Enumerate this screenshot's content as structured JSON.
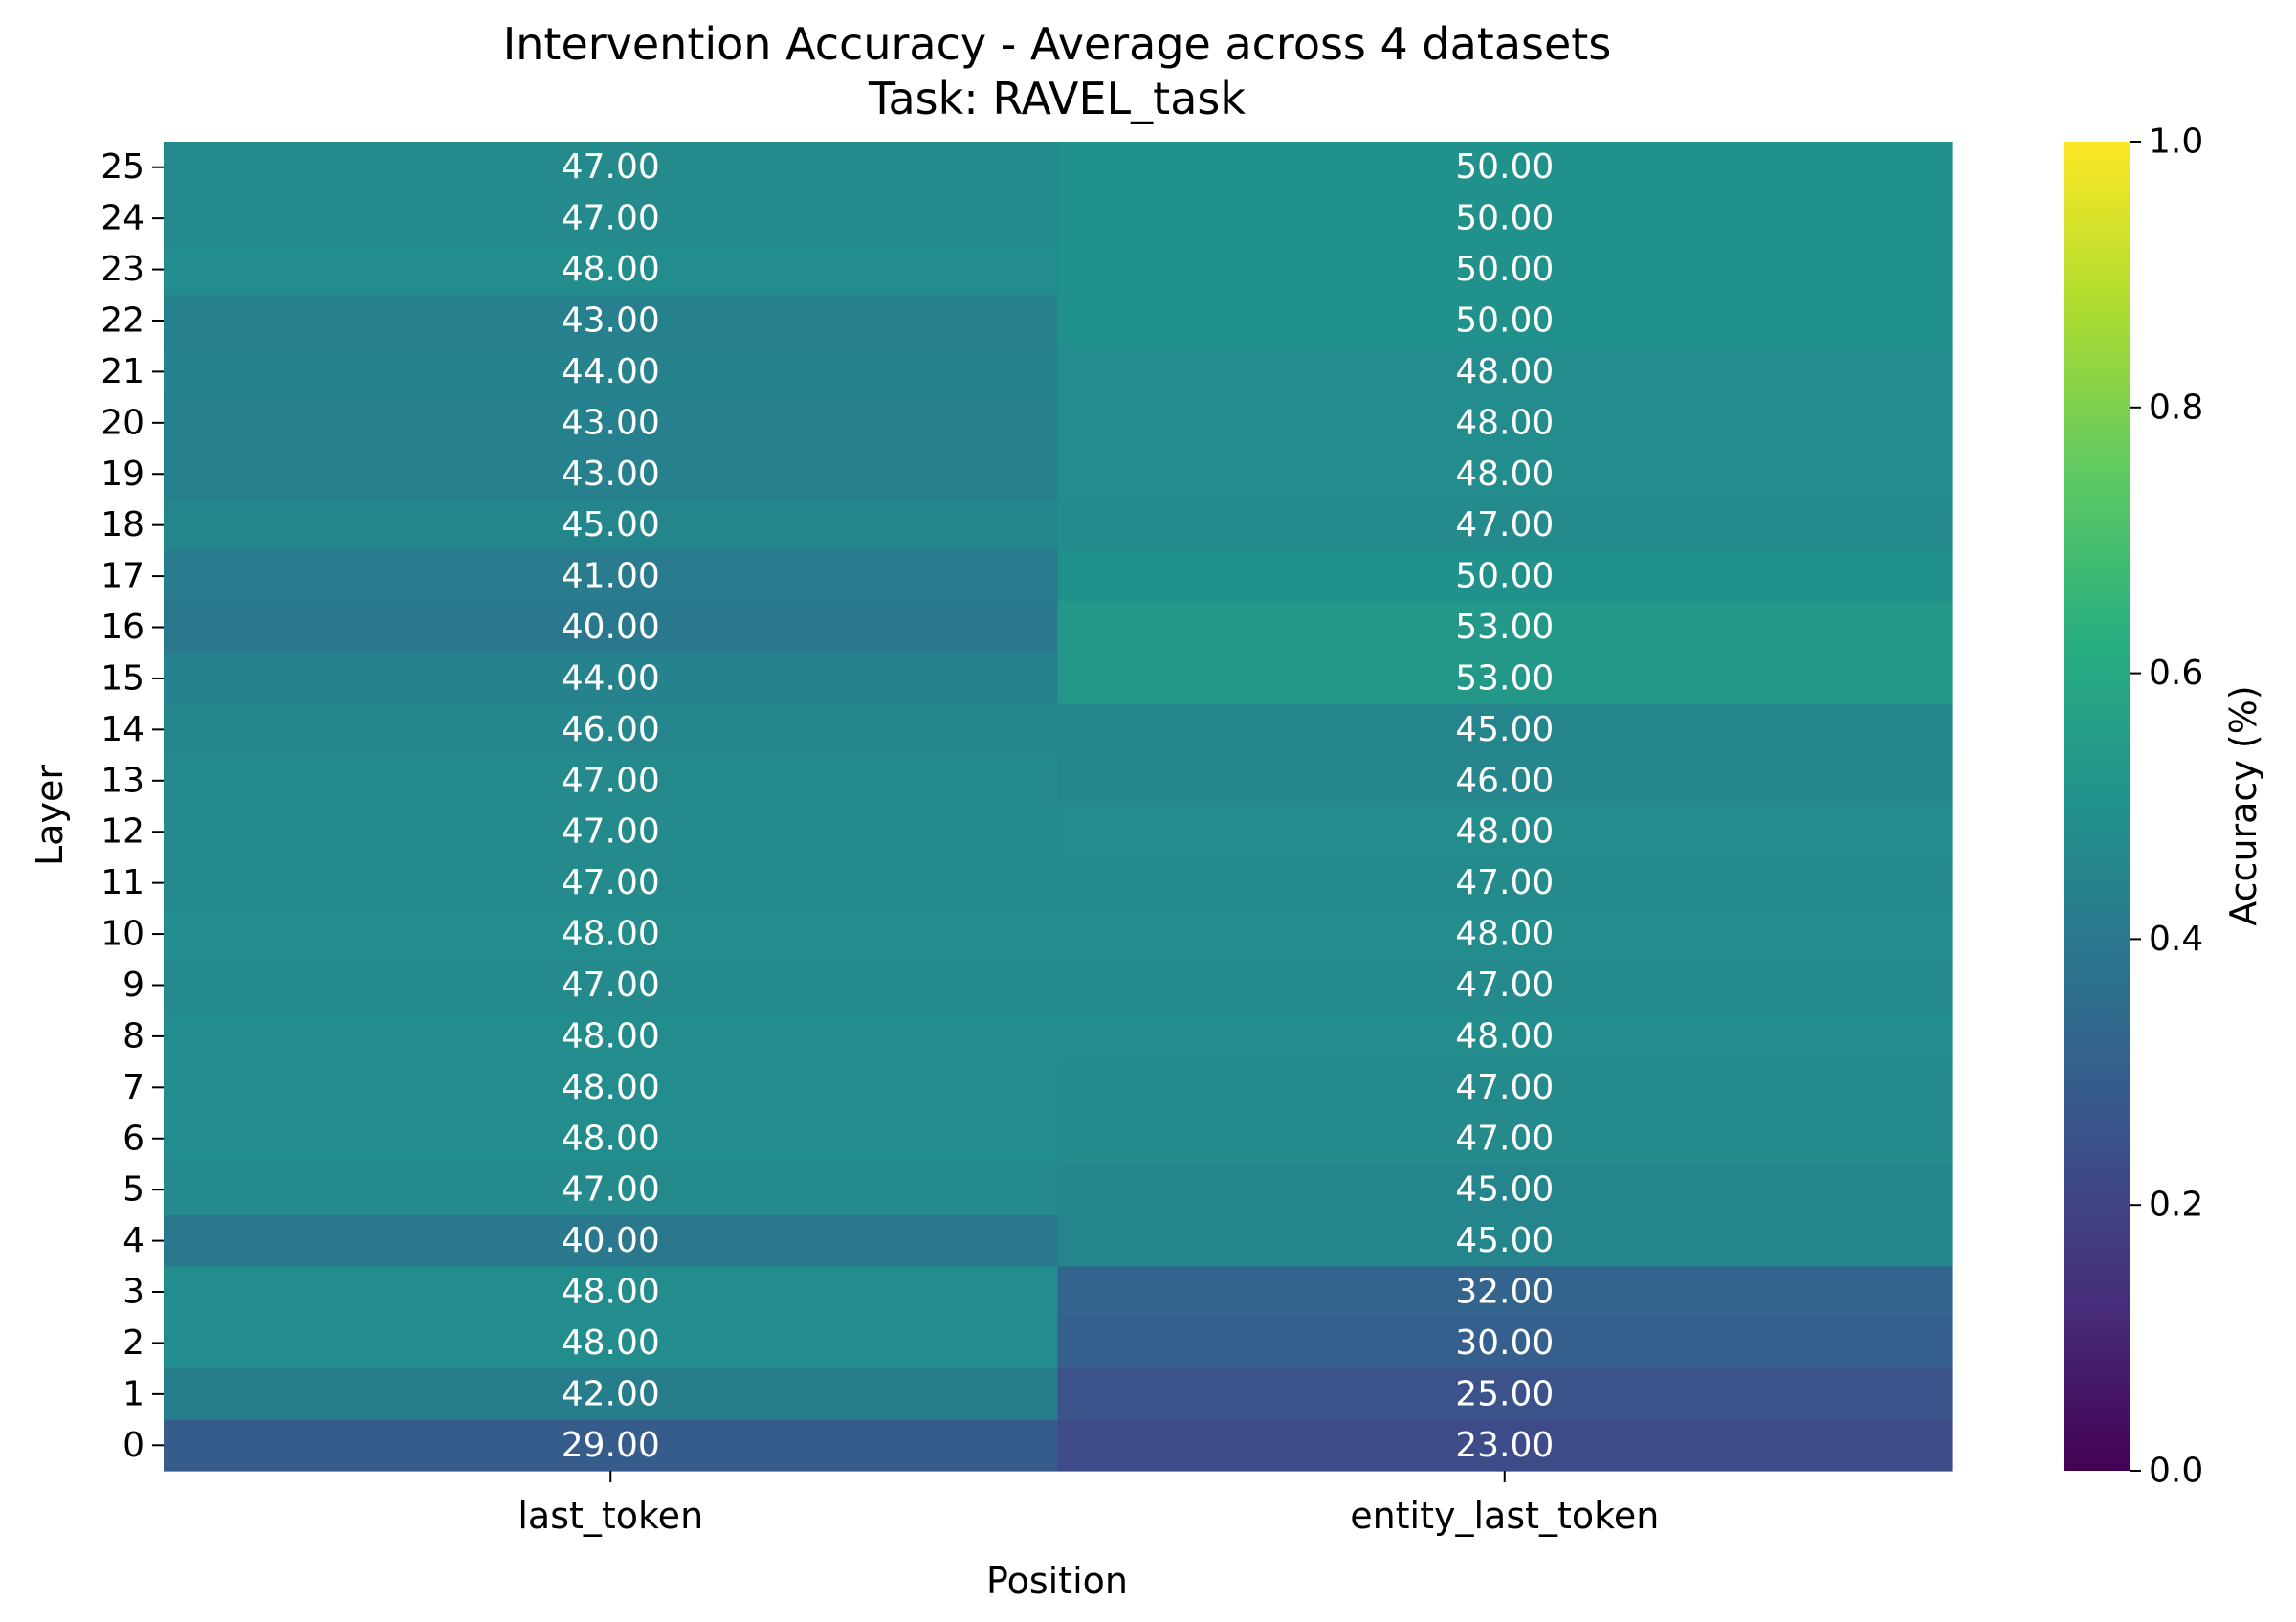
{
  "chart_data": {
    "type": "heatmap",
    "title": "Intervention Accuracy - Average across 4 datasets",
    "subtitle": "Task: RAVEL_task",
    "xlabel": "Position",
    "ylabel": "Layer",
    "x_categories": [
      "last_token",
      "entity_last_token"
    ],
    "y_categories": [
      "25",
      "24",
      "23",
      "22",
      "21",
      "20",
      "19",
      "18",
      "17",
      "16",
      "15",
      "14",
      "13",
      "12",
      "11",
      "10",
      "9",
      "8",
      "7",
      "6",
      "5",
      "4",
      "3",
      "2",
      "1",
      "0"
    ],
    "values": [
      [
        47.0,
        50.0
      ],
      [
        47.0,
        50.0
      ],
      [
        48.0,
        50.0
      ],
      [
        43.0,
        50.0
      ],
      [
        44.0,
        48.0
      ],
      [
        43.0,
        48.0
      ],
      [
        43.0,
        48.0
      ],
      [
        45.0,
        47.0
      ],
      [
        41.0,
        50.0
      ],
      [
        40.0,
        53.0
      ],
      [
        44.0,
        53.0
      ],
      [
        46.0,
        45.0
      ],
      [
        47.0,
        46.0
      ],
      [
        47.0,
        48.0
      ],
      [
        47.0,
        47.0
      ],
      [
        48.0,
        48.0
      ],
      [
        47.0,
        47.0
      ],
      [
        48.0,
        48.0
      ],
      [
        48.0,
        47.0
      ],
      [
        48.0,
        47.0
      ],
      [
        47.0,
        45.0
      ],
      [
        40.0,
        45.0
      ],
      [
        48.0,
        32.0
      ],
      [
        48.0,
        30.0
      ],
      [
        42.0,
        25.0
      ],
      [
        29.0,
        23.0
      ]
    ],
    "value_format": "0.00",
    "colormap": "viridis",
    "colorbar": {
      "label": "Accuracy (%)",
      "range": [
        0.0,
        1.0
      ],
      "ticks": [
        "0.0",
        "0.2",
        "0.4",
        "0.6",
        "0.8",
        "1.0"
      ]
    },
    "annotation_color": "#ffffff"
  }
}
